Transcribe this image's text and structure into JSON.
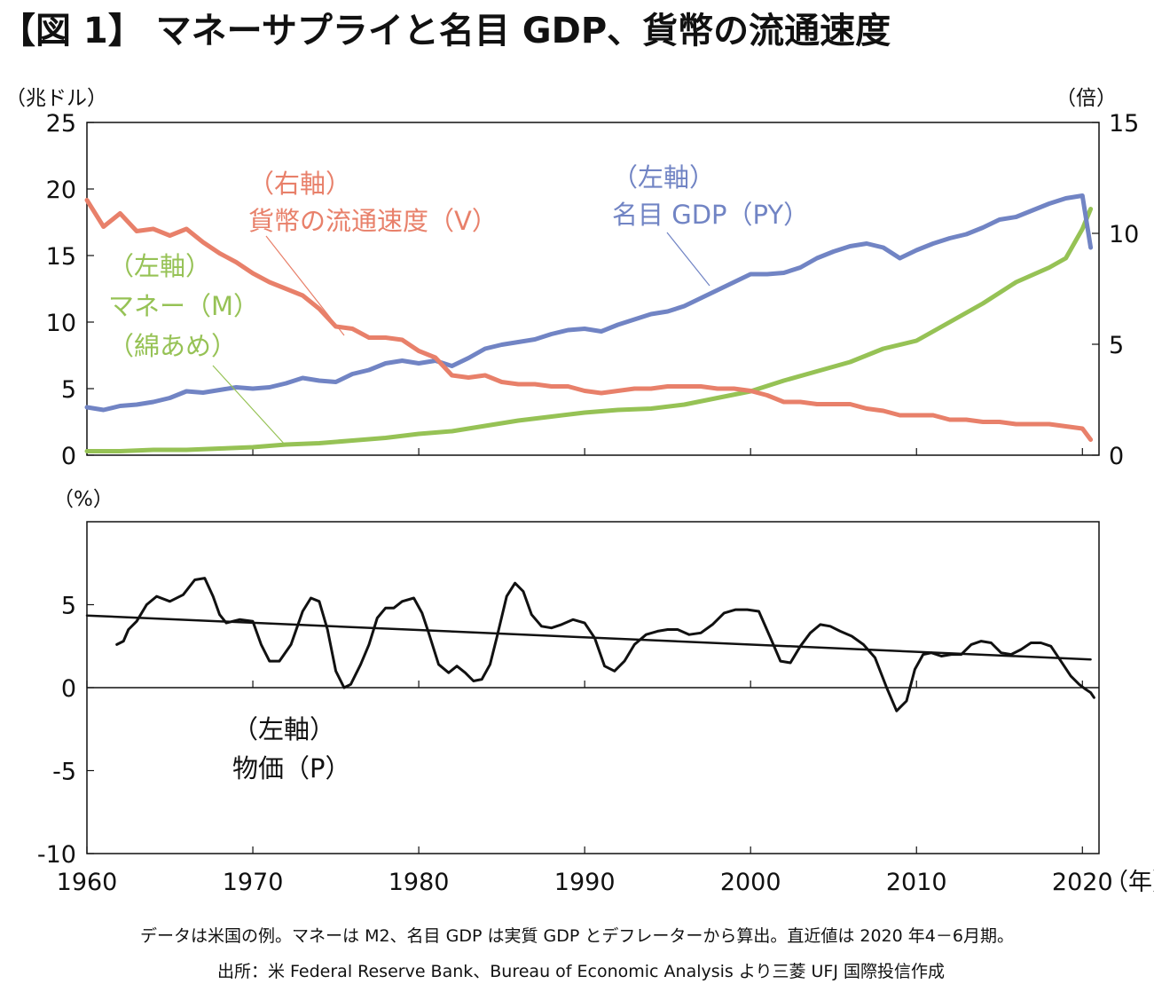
{
  "figure": {
    "title": "【図 1】 マネーサプライと名目 GDP、貨幣の流通速度",
    "note": "データは米国の例。マネーは M2、名目 GDP は実質 GDP とデフレーターから算出。直近値は 2020 年4－6月期。",
    "source": "出所：米 Federal Reserve Bank、Bureau of Economic Analysis より三菱 UFJ 国際投信作成"
  },
  "chart_data": [
    {
      "type": "line",
      "panel": "top",
      "left_axis": {
        "unit": "（兆ドル）",
        "ylim": [
          0,
          25
        ],
        "ticks": [
          "0",
          "5",
          "10",
          "15",
          "20",
          "25"
        ]
      },
      "right_axis": {
        "unit": "（倍）",
        "ylim": [
          0,
          15
        ],
        "ticks": [
          "0",
          "5",
          "10",
          "15"
        ]
      },
      "xlim": [
        1960,
        2021
      ],
      "series": [
        {
          "name": "名目 GDP（PY）",
          "annotation": [
            "（左軸）",
            "名目 GDP（PY）"
          ],
          "axis": "left",
          "color": "#7184c4",
          "x": [
            1960,
            1961,
            1962,
            1963,
            1964,
            1965,
            1966,
            1967,
            1968,
            1969,
            1970,
            1971,
            1972,
            1973,
            1974,
            1975,
            1976,
            1977,
            1978,
            1979,
            1980,
            1981,
            1982,
            1983,
            1984,
            1985,
            1986,
            1987,
            1988,
            1989,
            1990,
            1991,
            1992,
            1993,
            1994,
            1995,
            1996,
            1997,
            1998,
            1999,
            2000,
            2001,
            2002,
            2003,
            2004,
            2005,
            2006,
            2007,
            2008,
            2009,
            2010,
            2011,
            2012,
            2013,
            2014,
            2015,
            2016,
            2017,
            2018,
            2019,
            2020,
            2020.5
          ],
          "values": [
            3.6,
            3.4,
            3.7,
            3.8,
            4.0,
            4.3,
            4.8,
            4.7,
            4.9,
            5.1,
            5.0,
            5.1,
            5.4,
            5.8,
            5.6,
            5.5,
            6.1,
            6.4,
            6.9,
            7.1,
            6.9,
            7.1,
            6.7,
            7.3,
            8.0,
            8.3,
            8.5,
            8.7,
            9.1,
            9.4,
            9.5,
            9.3,
            9.8,
            10.2,
            10.6,
            10.8,
            11.2,
            11.8,
            12.4,
            13.0,
            13.6,
            13.6,
            13.7,
            14.1,
            14.8,
            15.3,
            15.7,
            15.9,
            15.6,
            14.8,
            15.4,
            15.9,
            16.3,
            16.6,
            17.1,
            17.7,
            17.9,
            18.4,
            18.9,
            19.3,
            19.5,
            15.6
          ]
        },
        {
          "name": "マネー（M）",
          "annotation": [
            "（左軸）",
            "マネー（M）",
            "（綿あめ）"
          ],
          "axis": "left",
          "color": "#96c255",
          "x": [
            1960,
            1962,
            1964,
            1966,
            1968,
            1970,
            1972,
            1974,
            1976,
            1978,
            1980,
            1982,
            1984,
            1986,
            1988,
            1990,
            1992,
            1994,
            1996,
            1998,
            2000,
            2002,
            2004,
            2006,
            2008,
            2010,
            2012,
            2014,
            2016,
            2018,
            2019,
            2020,
            2020.5
          ],
          "values": [
            0.3,
            0.3,
            0.4,
            0.4,
            0.5,
            0.6,
            0.8,
            0.9,
            1.1,
            1.3,
            1.6,
            1.8,
            2.2,
            2.6,
            2.9,
            3.2,
            3.4,
            3.5,
            3.8,
            4.3,
            4.8,
            5.6,
            6.3,
            7.0,
            8.0,
            8.6,
            10.0,
            11.4,
            13.0,
            14.1,
            14.8,
            17.0,
            18.5
          ]
        },
        {
          "name": "貨幣の流通速度（V）",
          "annotation": [
            "（右軸）",
            "貨幣の流通速度（V）"
          ],
          "axis": "right",
          "color": "#e8806a",
          "x": [
            1960,
            1961,
            1962,
            1963,
            1964,
            1965,
            1966,
            1967,
            1968,
            1969,
            1970,
            1971,
            1972,
            1973,
            1974,
            1975,
            1976,
            1977,
            1978,
            1979,
            1980,
            1981,
            1982,
            1983,
            1984,
            1985,
            1986,
            1987,
            1988,
            1989,
            1990,
            1991,
            1992,
            1993,
            1994,
            1995,
            1996,
            1997,
            1998,
            1999,
            2000,
            2001,
            2002,
            2003,
            2004,
            2005,
            2006,
            2007,
            2008,
            2009,
            2010,
            2011,
            2012,
            2013,
            2014,
            2015,
            2016,
            2017,
            2018,
            2019,
            2020,
            2020.5
          ],
          "values": [
            11.5,
            10.3,
            10.9,
            10.1,
            10.2,
            9.9,
            10.2,
            9.6,
            9.1,
            8.7,
            8.2,
            7.8,
            7.5,
            7.2,
            6.6,
            5.8,
            5.7,
            5.3,
            5.3,
            5.2,
            4.7,
            4.4,
            3.6,
            3.5,
            3.6,
            3.3,
            3.2,
            3.2,
            3.1,
            3.1,
            2.9,
            2.8,
            2.9,
            3.0,
            3.0,
            3.1,
            3.1,
            3.1,
            3.0,
            3.0,
            2.9,
            2.7,
            2.4,
            2.4,
            2.3,
            2.3,
            2.3,
            2.1,
            2.0,
            1.8,
            1.8,
            1.8,
            1.6,
            1.6,
            1.5,
            1.5,
            1.4,
            1.4,
            1.4,
            1.3,
            1.2,
            0.7
          ]
        }
      ]
    },
    {
      "type": "line",
      "panel": "bottom",
      "left_axis": {
        "unit": "（%）",
        "ylim": [
          -10,
          10
        ],
        "ticks": [
          "-10",
          "-5",
          "0",
          "5"
        ]
      },
      "xlim": [
        1960,
        2021
      ],
      "x_ticks": [
        "1960",
        "1970",
        "1980",
        "1990",
        "2000",
        "2010",
        "2020"
      ],
      "x_unit": "（年）",
      "series": [
        {
          "name": "物価（P）",
          "annotation": [
            "（左軸）",
            "物価（P）"
          ],
          "axis": "left",
          "color": "#111111",
          "x": [
            1961.8,
            1962.2,
            1962.5,
            1963,
            1963.6,
            1964.2,
            1965,
            1965.8,
            1966.5,
            1967.1,
            1967.6,
            1968,
            1968.4,
            1969.2,
            1970,
            1970.5,
            1971,
            1971.6,
            1972.3,
            1973,
            1973.5,
            1974,
            1974.5,
            1975,
            1975.5,
            1975.9,
            1976.5,
            1977,
            1977.5,
            1978,
            1978.5,
            1979,
            1979.7,
            1980.2,
            1980.6,
            1981.2,
            1981.8,
            1982.3,
            1982.8,
            1983.3,
            1983.8,
            1984.3,
            1984.7,
            1985.3,
            1985.8,
            1986.3,
            1986.8,
            1987.4,
            1988,
            1988.6,
            1989.3,
            1990,
            1990.6,
            1991.2,
            1991.8,
            1992.4,
            1993,
            1993.7,
            1994.4,
            1995,
            1995.6,
            1996.3,
            1997,
            1997.7,
            1998.4,
            1999.1,
            1999.8,
            2000.5,
            2001.2,
            2001.8,
            2002.4,
            2003,
            2003.6,
            2004.2,
            2004.8,
            2005.4,
            2006.1,
            2006.8,
            2007.5,
            2008.2,
            2008.8,
            2009.4,
            2009.9,
            2010.4,
            2010.9,
            2011.5,
            2012.1,
            2012.7,
            2013.3,
            2013.9,
            2014.5,
            2015.1,
            2015.7,
            2016.3,
            2016.9,
            2017.5,
            2018.1,
            2018.7,
            2019.3,
            2019.8,
            2020.2,
            2020.5,
            2020.7
          ],
          "values": [
            2.6,
            2.8,
            3.5,
            4.0,
            5.0,
            5.5,
            5.2,
            5.6,
            6.5,
            6.6,
            5.5,
            4.4,
            3.9,
            4.1,
            4.0,
            2.6,
            1.6,
            1.6,
            2.6,
            4.6,
            5.4,
            5.2,
            3.5,
            1.0,
            0.0,
            0.2,
            1.4,
            2.6,
            4.2,
            4.8,
            4.8,
            5.2,
            5.4,
            4.5,
            3.3,
            1.4,
            0.9,
            1.3,
            0.9,
            0.4,
            0.5,
            1.4,
            3.0,
            5.5,
            6.3,
            5.8,
            4.4,
            3.7,
            3.6,
            3.8,
            4.1,
            3.9,
            3.0,
            1.3,
            1.0,
            1.6,
            2.6,
            3.2,
            3.4,
            3.5,
            3.5,
            3.2,
            3.3,
            3.8,
            4.5,
            4.7,
            4.7,
            4.6,
            3.0,
            1.6,
            1.5,
            2.5,
            3.3,
            3.8,
            3.7,
            3.4,
            3.1,
            2.6,
            1.8,
            0.0,
            -1.4,
            -0.8,
            1.1,
            2.0,
            2.1,
            1.9,
            2.0,
            2.0,
            2.6,
            2.8,
            2.7,
            2.1,
            2.0,
            2.3,
            2.7,
            2.7,
            2.5,
            1.6,
            0.7,
            0.2,
            -0.1,
            -0.3,
            -0.6
          ]
        },
        {
          "name": "trend",
          "axis": "left",
          "color": "#111111",
          "x": [
            1960,
            2020.5
          ],
          "values": [
            4.35,
            1.7
          ]
        }
      ]
    }
  ]
}
